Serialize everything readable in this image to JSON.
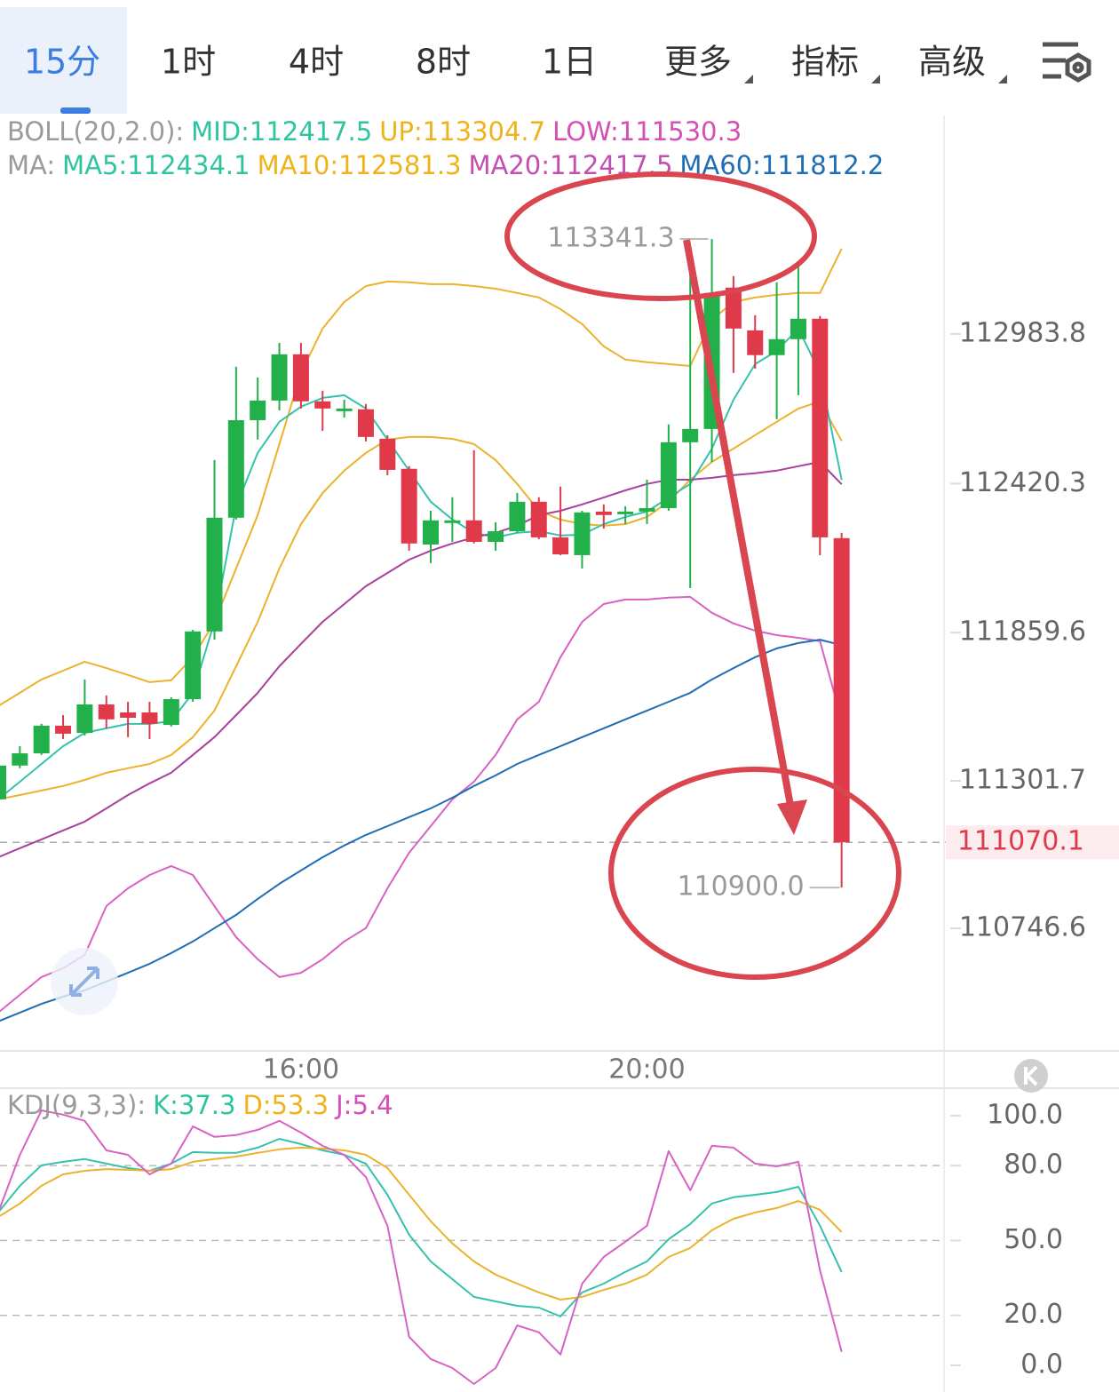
{
  "tabs": [
    "15分",
    "1时",
    "4时",
    "8时",
    "1日",
    "更多",
    "指标",
    "高级"
  ],
  "chart_data": [
    {
      "type": "candlestick",
      "legend_rows": [
        {
          "label": "BOLL(20,2.0):",
          "items": [
            {
              "text": "MID:112417.5",
              "color": "#2ec4a0"
            },
            {
              "text": "UP:113304.7",
              "color": "#f0b21a"
            },
            {
              "text": "LOW:111530.3",
              "color": "#d64fb4"
            }
          ]
        },
        {
          "label": "MA:",
          "items": [
            {
              "text": "MA5:112434.1",
              "color": "#2ec4a0"
            },
            {
              "text": "MA10:112581.3",
              "color": "#f0b21a"
            },
            {
              "text": "MA20:112417.5",
              "color": "#c24fb0"
            },
            {
              "text": "MA60:111812.2",
              "color": "#1f6db4"
            }
          ]
        }
      ],
      "categories": [
        null,
        null,
        null,
        null,
        null,
        null,
        null,
        null,
        null,
        null,
        null,
        null,
        null,
        null,
        "16:00",
        null,
        null,
        null,
        null,
        null,
        null,
        null,
        null,
        null,
        null,
        null,
        null,
        null,
        null,
        null,
        "20:00",
        null,
        null,
        null,
        null,
        null,
        null,
        null,
        null,
        null
      ],
      "open": [
        111232,
        111359,
        111405,
        111509,
        111482,
        111589,
        111559,
        111559,
        111512,
        111609,
        111864,
        112292,
        112659,
        112733,
        112907,
        112730,
        112693,
        112700,
        112589,
        112476,
        112191,
        112272,
        112282,
        112201,
        112241,
        112352,
        112218,
        112151,
        112315,
        112305,
        112315,
        112328,
        112576,
        112626,
        113158,
        112997,
        112904,
        112964,
        113041,
        112215
      ],
      "high": [
        111399,
        111432,
        111516,
        111549,
        111683,
        111623,
        111599,
        111599,
        111616,
        111870,
        112509,
        112860,
        112820,
        112950,
        112950,
        112770,
        112736,
        112720,
        112603,
        112486,
        112318,
        112369,
        112546,
        112275,
        112385,
        112369,
        112409,
        112318,
        112342,
        112335,
        112435,
        112643,
        113238,
        113341.3,
        113201,
        113054,
        113178,
        113238,
        113051,
        112235
      ],
      "low": [
        111215,
        111349,
        111399,
        111459,
        111472,
        111499,
        111466,
        111459,
        111506,
        111599,
        111833,
        112285,
        112586,
        112696,
        112703,
        112619,
        112669,
        112579,
        112452,
        112168,
        112121,
        112201,
        112195,
        112168,
        112235,
        112211,
        112151,
        112101,
        112251,
        112268,
        112268,
        112318,
        112027,
        112502,
        112837,
        112853,
        112663,
        112753,
        112151,
        110900
      ],
      "close": [
        111359,
        111405,
        111509,
        111479,
        111589,
        111533,
        111539,
        111516,
        111609,
        111864,
        112292,
        112659,
        112733,
        112907,
        112730,
        112703,
        112703,
        112596,
        112472,
        112195,
        112282,
        112282,
        112201,
        112241,
        112352,
        112218,
        112154,
        112312,
        112302,
        112315,
        112328,
        112576,
        112626,
        113138,
        113004,
        112904,
        112964,
        113041,
        112218,
        111070.1
      ],
      "up_color": "#22b04b",
      "down_color": "#e0394a",
      "overlays": [
        {
          "color": "#ebb22c",
          "width": 2,
          "values": [
            111583,
            111633,
            111683,
            111716,
            111750,
            111726,
            111700,
            111673,
            111680,
            111767,
            111900,
            112101,
            112302,
            112569,
            112837,
            113004,
            113104,
            113164,
            113181,
            113178,
            113171,
            113171,
            113164,
            113154,
            113138,
            113121,
            113077,
            113021,
            112937,
            112887,
            112877,
            112870,
            112863,
            113037,
            113104,
            113121,
            113131,
            113138,
            113138,
            113304.7
          ]
        },
        {
          "color": "#ebb22c",
          "width": 2,
          "values": [
            111232,
            111248,
            111265,
            111282,
            111305,
            111332,
            111349,
            111365,
            111399,
            111466,
            111566,
            111733,
            111900,
            112101,
            112268,
            112385,
            112469,
            112536,
            112586,
            112596,
            112596,
            112589,
            112569,
            112509,
            112419,
            112318,
            112285,
            112268,
            112262,
            112268,
            112295,
            112352,
            112435,
            112502,
            112552,
            112603,
            112653,
            112703,
            112730,
            112581.3
          ]
        },
        {
          "color": "#35c2ad",
          "width": 2,
          "values": [
            111232,
            111298,
            111365,
            111432,
            111482,
            111499,
            111516,
            111516,
            111526,
            111633,
            111900,
            112335,
            112536,
            112653,
            112710,
            112743,
            112753,
            112703,
            112586,
            112469,
            112352,
            112285,
            112235,
            112218,
            112235,
            112241,
            112225,
            112228,
            112268,
            112295,
            112315,
            112368,
            112419,
            112552,
            112736,
            112870,
            112920,
            113004,
            112837,
            112434.1
          ]
        },
        {
          "color": "#a8409c",
          "width": 2,
          "values": [
            111014,
            111048,
            111081,
            111115,
            111148,
            111198,
            111248,
            111292,
            111332,
            111399,
            111466,
            111549,
            111633,
            111733,
            111817,
            111900,
            111967,
            112034,
            112084,
            112134,
            112168,
            112195,
            112218,
            112235,
            112262,
            112302,
            112318,
            112342,
            112368,
            112395,
            112419,
            112435,
            112435,
            112442,
            112452,
            112459,
            112469,
            112486,
            112502,
            112417.5
          ]
        },
        {
          "color": "#d862c4",
          "width": 2,
          "values": [
            110429,
            110496,
            110563,
            110596,
            110646,
            110830,
            110897,
            110947,
            110981,
            110947,
            110830,
            110713,
            110630,
            110563,
            110579,
            110630,
            110697,
            110747,
            110897,
            111031,
            111131,
            111232,
            111298,
            111399,
            111533,
            111599,
            111767,
            111900,
            111967,
            111984,
            111984,
            111991,
            111994,
            111934,
            111894,
            111867,
            111850,
            111840,
            111827,
            111530.3
          ]
        },
        {
          "color": "#1f6db4",
          "width": 2,
          "values": [
            110396,
            110429,
            110462,
            110489,
            110513,
            110546,
            110579,
            110613,
            110653,
            110697,
            110747,
            110797,
            110857,
            110914,
            110964,
            111014,
            111058,
            111098,
            111131,
            111165,
            111198,
            111238,
            111282,
            111322,
            111365,
            111399,
            111432,
            111466,
            111499,
            111533,
            111566,
            111599,
            111633,
            111683,
            111726,
            111767,
            111800,
            111820,
            111833,
            111812.2
          ]
        }
      ],
      "ylim": [
        110285,
        113806
      ],
      "yticks": [
        112983.8,
        112420.3,
        111859.6,
        111301.7,
        110746.6
      ],
      "last_price": 111070.1,
      "max_label": 113341.3,
      "min_label": {
        "value": 110900,
        "label": "110900.0"
      }
    },
    {
      "type": "line",
      "legend_rows": [
        {
          "label": "KDJ(9,3,3):",
          "items": [
            {
              "text": "K:37.3",
              "color": "#2ec4a0"
            },
            {
              "text": "D:53.3",
              "color": "#f0b21a"
            },
            {
              "text": "J:5.4",
              "color": "#d64fb4"
            }
          ]
        }
      ],
      "series": [
        {
          "color": "#35c2ad",
          "values": [
            61.2,
            71.9,
            80.1,
            81.5,
            82.6,
            80.8,
            79.0,
            77.9,
            80.8,
            85.4,
            85.1,
            85.1,
            87.2,
            90.7,
            88.6,
            86.1,
            84.3,
            80.8,
            68.3,
            52.3,
            41.6,
            34.5,
            27.4,
            25.6,
            23.8,
            23.1,
            19.6,
            29.2,
            32.7,
            37.4,
            41.6,
            50.5,
            56.6,
            64.8,
            67.3,
            68.3,
            69.4,
            71.5,
            55.9,
            37.3
          ]
        },
        {
          "color": "#ebb22c",
          "values": [
            59.4,
            64.8,
            71.9,
            76.5,
            77.9,
            78.6,
            78.3,
            77.9,
            78.6,
            81.5,
            82.6,
            83.6,
            85.1,
            86.5,
            87.2,
            86.8,
            86.1,
            84.3,
            79.0,
            68.3,
            57.7,
            48.8,
            41.6,
            36.3,
            32.7,
            29.2,
            26.3,
            27.4,
            30.2,
            32.7,
            36.3,
            43.4,
            47.0,
            54.1,
            58.7,
            61.2,
            63.0,
            65.8,
            62.3,
            53.3
          ]
        },
        {
          "color": "#d862c4",
          "values": [
            61.2,
            84.3,
            102.1,
            100.4,
            97.9,
            86.1,
            84.3,
            76.5,
            80.8,
            95.7,
            91.5,
            92.2,
            94.3,
            97.9,
            93.2,
            87.9,
            84.3,
            75.4,
            55.9,
            11.4,
            2.5,
            -1.1,
            -7.5,
            -1.1,
            16.0,
            13.2,
            4.3,
            32.7,
            43.4,
            49.5,
            55.9,
            85.8,
            70.1,
            87.9,
            87.2,
            80.8,
            79.7,
            81.5,
            38.1,
            5.4
          ]
        }
      ],
      "ylim": [
        -10.7,
        111
      ],
      "yticks": [
        {
          "value": 100,
          "label": "100.0"
        },
        {
          "value": 80,
          "label": "80.0"
        },
        {
          "value": 50,
          "label": "50.0"
        },
        {
          "value": 20,
          "label": "20.0"
        },
        {
          "value": 0,
          "label": "0.0"
        }
      ],
      "grid": true
    }
  ]
}
